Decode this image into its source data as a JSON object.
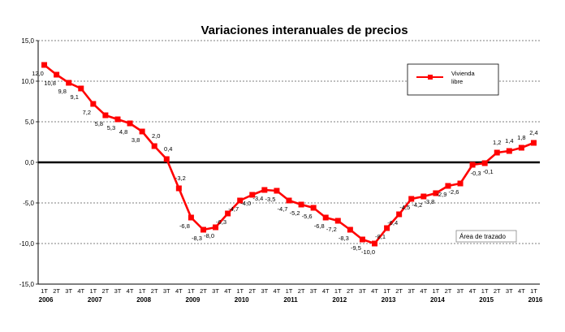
{
  "chart_data": {
    "type": "line",
    "title": "Variaciones  interanuales  de precios",
    "xlabel": "",
    "ylabel": "",
    "ylim": [
      -15,
      15
    ],
    "yticks": [
      "15,0",
      "10,0",
      "5,0",
      "0,0",
      "-5,0",
      "-10,0",
      "-15,0"
    ],
    "ytick_values": [
      15,
      10,
      5,
      0,
      -5,
      -10,
      -15
    ],
    "grid": true,
    "legend_position": "top-right",
    "series": [
      {
        "name": "Vivienda libre",
        "color": "#ff0000",
        "values": [
          12.0,
          10.8,
          9.8,
          9.1,
          7.2,
          5.8,
          5.3,
          4.8,
          3.8,
          2.0,
          0.4,
          -3.2,
          -6.8,
          -8.3,
          -8.0,
          -6.3,
          -4.7,
          -4.0,
          -3.4,
          -3.5,
          -4.7,
          -5.2,
          -5.6,
          -6.8,
          -7.2,
          -8.3,
          -9.5,
          -10.0,
          -8.1,
          -6.4,
          -4.5,
          -4.2,
          -3.8,
          -2.9,
          -2.6,
          -0.3,
          -0.1,
          1.2,
          1.4,
          1.8,
          2.4
        ],
        "labels": [
          "12,0",
          "10,8",
          "9,8",
          "9,1",
          "7,2",
          "5,8",
          "5,3",
          "4,8",
          "3,8",
          "2,0",
          "0,4",
          "-3,2",
          "-6,8",
          "-8,3",
          "-8,0",
          "-6,3",
          "-4,7",
          "-4,0",
          "-3,4",
          "-3,5",
          "-4,7",
          "-5,2",
          "-5,6",
          "-6,8",
          "-7,2",
          "-8,3",
          "-9,5",
          "-10,0",
          "-8,1",
          "-6,4",
          "-4,5",
          "-4,2",
          "-3,8",
          "-2,9",
          "-2,6",
          "-0,3",
          "-0,1",
          "1,2",
          "1,4",
          "1,8",
          "2,4"
        ]
      }
    ],
    "categories": [
      "1T",
      "2T",
      "3T",
      "4T",
      "1T",
      "2T",
      "3T",
      "4T",
      "1T",
      "2T",
      "3T",
      "4T",
      "1T",
      "2T",
      "3T",
      "4T",
      "1T",
      "2T",
      "3T",
      "4T",
      "1T",
      "2T",
      "3T",
      "4T",
      "1T",
      "2T",
      "3T",
      "4T",
      "1T",
      "2T",
      "3T",
      "4T",
      "1T",
      "2T",
      "3T",
      "4T",
      "1T",
      "2T",
      "3T",
      "4T",
      "1T"
    ],
    "years": [
      "2006",
      "2007",
      "2008",
      "2009",
      "2010",
      "2011",
      "2012",
      "2013",
      "2014",
      "2015",
      "2016"
    ],
    "annotation": "Área de trazado",
    "legend_label_lines": [
      "Vivienda",
      "libre"
    ]
  }
}
